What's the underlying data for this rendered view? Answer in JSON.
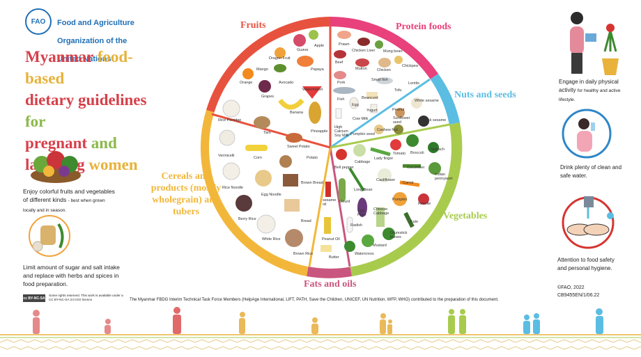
{
  "header": {
    "logo_text": "FAO",
    "org_line1": "Food and Agriculture",
    "org_line2": "Organization of the",
    "org_line3": "United Nations"
  },
  "title": {
    "w1": "Myanmar",
    "w2": "food-based",
    "w3": "dietary guidelines",
    "w4": "for",
    "w5": "pregnant",
    "w6": "and",
    "w7": "lactating",
    "w8": "women"
  },
  "left_notes": {
    "n1_main": "Enjoy colorful fruits and vegetables of different kinds",
    "n1_small": "- best when grown locally and in season.",
    "n2": "Limit amount of sugar and salt intake and replace with herbs and spices in food preparation."
  },
  "license": {
    "badge": "cc BY-NC-SA",
    "text": "Some rights reserved. This work is available under a CC BY-NC-SA 3.0 IGO licence"
  },
  "categories": {
    "fruits": "Fruits",
    "protein": "Protein foods",
    "nuts": "Nuts and seeds",
    "cereals": "Cereals and products (mostly wholegrain) and tubers",
    "fats": "Fats and oils",
    "vegetables": "Vegetables"
  },
  "foods": {
    "fruits": [
      "Guava",
      "Apple",
      "Dragon Fruit",
      "Mango",
      "Papaya",
      "Orange",
      "Avocado",
      "Grapes",
      "Watermelon",
      "Banana",
      "Pineapple"
    ],
    "protein": [
      "Prawn",
      "Chicken Liver",
      "Mung bean",
      "Beef",
      "Mutton",
      "Chicken",
      "Chickpea",
      "Pork",
      "Small fish",
      "Lentils",
      "Fish",
      "Beancurd",
      "Tofu",
      "Egg",
      "Yogurt",
      "Cow Milk",
      "High Calcium Soy Milk"
    ],
    "nuts": [
      "White sesame",
      "Peanut",
      "Sunflower seed",
      "Black sesame",
      "Pumpkin seed",
      "Cashew Nut"
    ],
    "cereals": [
      "Rice Porridge",
      "Taro",
      "Vermicelli",
      "Corn",
      "Sweet Potato",
      "Potato",
      "Rice Noodle",
      "Egg Noodle",
      "Brown Bread",
      "Berry Rice",
      "Bread",
      "White Rice",
      "Brown Rice"
    ],
    "fats": [
      "sesame oil",
      "Peanut Oil",
      "Butter"
    ],
    "vegetables": [
      "Tomato",
      "Broccoli",
      "Spinach",
      "Lady finger",
      "Bell pepper",
      "Cabbage",
      "Cucumber",
      "Indian pennywort",
      "Long Bean",
      "Cauliflower",
      "Carrot",
      "Pumpkin",
      "Roselle",
      "Gourd",
      "Egg Plant",
      "Chinese Cabbage",
      "Kale",
      "Radish",
      "Drumstick leaves",
      "Mustard",
      "Watercress"
    ]
  },
  "right_notes": {
    "r1_main": "Engage in daily physical activity",
    "r1_small": "for healthy and active lifestyle.",
    "r2": "Drink plenty of clean and safe water.",
    "r3": "Attention to food safety and personal hygiene."
  },
  "footer": {
    "copyright": "©FAO, 2022",
    "code": "CB9455EN/1/06.22",
    "contributors": "The Myanmar FBDG Interim Technical Task Force Members (HelpAge International, LIFT, PATH, Save the Children, UNICEF, UN Nutrition, WFP, WHO) contributed to the preparation of this document."
  },
  "colors": {
    "fruits": "#e7523f",
    "protein": "#e8417b",
    "nuts": "#5bbde2",
    "vegetables": "#a8cb4e",
    "fats": "#c9567e",
    "cereals": "#f2b73a",
    "blue": "#1f6fb5"
  }
}
